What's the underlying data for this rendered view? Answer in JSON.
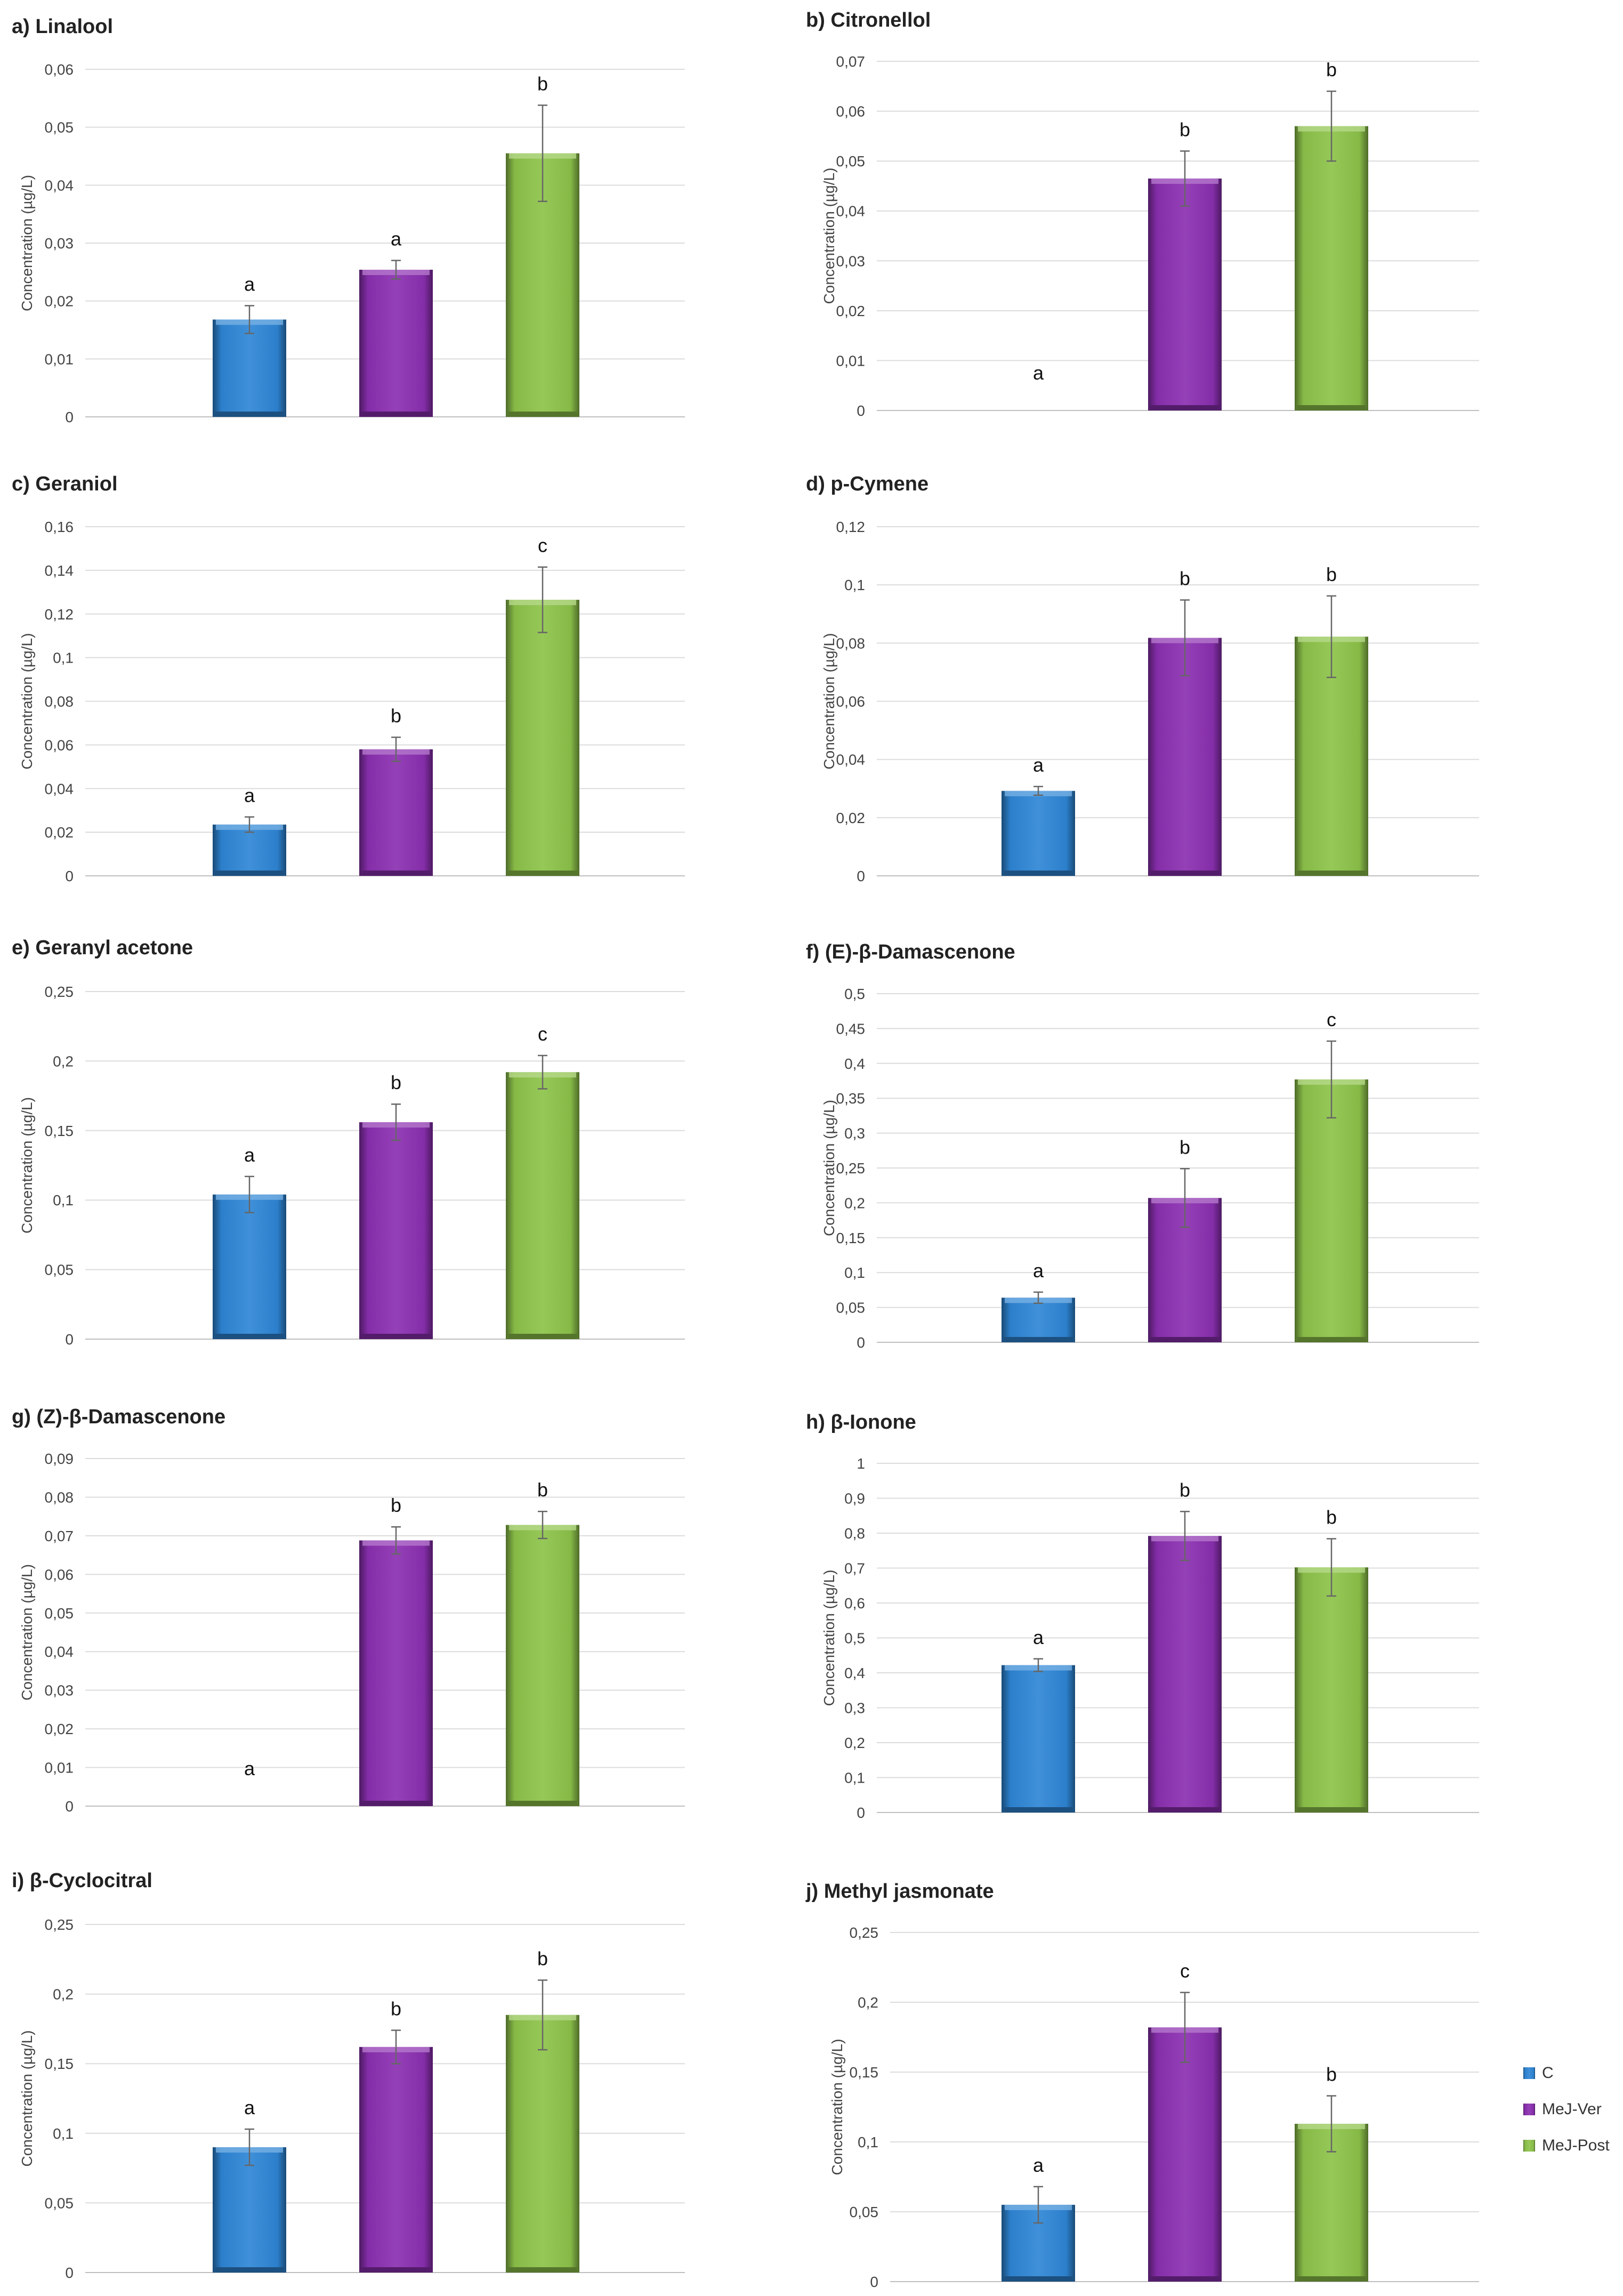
{
  "legend": [
    {
      "label": "C",
      "color": "#2E86D6"
    },
    {
      "label": "MeJ-Ver",
      "color": "#8B2FB1"
    },
    {
      "label": "MeJ-Post",
      "color": "#8DC34A"
    }
  ],
  "chart_data": [
    {
      "type": "bar",
      "title": "a) Linalool",
      "ylabel": "Concentration (µg/L)",
      "ylim": [
        0,
        0.06
      ],
      "ticks": [
        "0",
        "0,01",
        "0,02",
        "0,03",
        "0,04",
        "0,05",
        "0,06"
      ],
      "categories": [
        "C",
        "MeJ-Ver",
        "MeJ-Post"
      ],
      "values": [
        0.0168,
        0.0254,
        0.0455
      ],
      "errors": [
        0.0024,
        0.0016,
        0.0083
      ],
      "letters": [
        "a",
        "a",
        "b"
      ]
    },
    {
      "type": "bar",
      "title": "b) Citronellol",
      "ylabel": "Concentration (µg/L)",
      "ylim": [
        0,
        0.07
      ],
      "ticks": [
        "0",
        "0,01",
        "0,02",
        "0,03",
        "0,04",
        "0,05",
        "0,06",
        "0,07"
      ],
      "categories": [
        "C",
        "MeJ-Ver",
        "MeJ-Post"
      ],
      "values": [
        0,
        0.0465,
        0.057
      ],
      "errors": [
        0,
        0.0055,
        0.007
      ],
      "letters": [
        "a",
        "b",
        "b"
      ]
    },
    {
      "type": "bar",
      "title": "c) Geraniol",
      "ylabel": "Concentration (µg/L)",
      "ylim": [
        0,
        0.16
      ],
      "ticks": [
        "0",
        "0,02",
        "0,04",
        "0,06",
        "0,08",
        "0,1",
        "0,12",
        "0,14",
        "0,16"
      ],
      "categories": [
        "C",
        "MeJ-Ver",
        "MeJ-Post"
      ],
      "values": [
        0.0235,
        0.058,
        0.1265
      ],
      "errors": [
        0.0035,
        0.0055,
        0.015
      ],
      "letters": [
        "a",
        "b",
        "c"
      ]
    },
    {
      "type": "bar",
      "title": "d) p-Cymene",
      "ylabel": "Concentration (µg/L)",
      "ylim": [
        0,
        0.12
      ],
      "ticks": [
        "0",
        "0,02",
        "0,04",
        "0,06",
        "0,08",
        "0,1",
        "0,12"
      ],
      "categories": [
        "C",
        "MeJ-Ver",
        "MeJ-Post"
      ],
      "values": [
        0.0292,
        0.0818,
        0.0822
      ],
      "errors": [
        0.0015,
        0.013,
        0.014
      ],
      "letters": [
        "a",
        "b",
        "b"
      ]
    },
    {
      "type": "bar",
      "title": "e) Geranyl acetone",
      "ylabel": "Concentration (µg/L)",
      "ylim": [
        0,
        0.25
      ],
      "ticks": [
        "0",
        "0,05",
        "0,1",
        "0,15",
        "0,2",
        "0,25"
      ],
      "categories": [
        "C",
        "MeJ-Ver",
        "MeJ-Post"
      ],
      "values": [
        0.104,
        0.156,
        0.192
      ],
      "errors": [
        0.013,
        0.013,
        0.012
      ],
      "letters": [
        "a",
        "b",
        "c"
      ]
    },
    {
      "type": "bar",
      "title": "f) (E)-β-Damascenone",
      "ylabel": "Concentration (µg/L)",
      "ylim": [
        0,
        0.5
      ],
      "ticks": [
        "0",
        "0,05",
        "0,1",
        "0,15",
        "0,2",
        "0,25",
        "0,3",
        "0,35",
        "0,4",
        "0,45",
        "0,5"
      ],
      "categories": [
        "C",
        "MeJ-Ver",
        "MeJ-Post"
      ],
      "values": [
        0.064,
        0.207,
        0.377
      ],
      "errors": [
        0.008,
        0.042,
        0.055
      ],
      "letters": [
        "a",
        "b",
        "c"
      ]
    },
    {
      "type": "bar",
      "title": "g) (Z)-β-Damascenone",
      "ylabel": "Concentration (µg/L)",
      "ylim": [
        0,
        0.09
      ],
      "ticks": [
        "0",
        "0,01",
        "0,02",
        "0,03",
        "0,04",
        "0,05",
        "0,06",
        "0,07",
        "0,08",
        "0,09"
      ],
      "categories": [
        "C",
        "MeJ-Ver",
        "MeJ-Post"
      ],
      "values": [
        0,
        0.0688,
        0.0728
      ],
      "errors": [
        0,
        0.0035,
        0.0035
      ],
      "letters": [
        "a",
        "b",
        "b"
      ]
    },
    {
      "type": "bar",
      "title": "h) β-Ionone",
      "ylabel": "Concentration (µg/L)",
      "ylim": [
        0,
        1
      ],
      "ticks": [
        "0",
        "0,1",
        "0,2",
        "0,3",
        "0,4",
        "0,5",
        "0,6",
        "0,7",
        "0,8",
        "0,9",
        "1"
      ],
      "categories": [
        "C",
        "MeJ-Ver",
        "MeJ-Post"
      ],
      "values": [
        0.422,
        0.792,
        0.702
      ],
      "errors": [
        0.018,
        0.07,
        0.082
      ],
      "letters": [
        "a",
        "b",
        "b"
      ]
    },
    {
      "type": "bar",
      "title": "i) β-Cyclocitral",
      "ylabel": "Concentration (µg/L)",
      "ylim": [
        0,
        0.25
      ],
      "ticks": [
        "0",
        "0,05",
        "0,1",
        "0,15",
        "0,2",
        "0,25"
      ],
      "categories": [
        "C",
        "MeJ-Ver",
        "MeJ-Post"
      ],
      "values": [
        0.09,
        0.162,
        0.185
      ],
      "errors": [
        0.013,
        0.012,
        0.025
      ],
      "letters": [
        "a",
        "b",
        "b"
      ]
    },
    {
      "type": "bar",
      "title": "j) Methyl jasmonate",
      "ylabel": "Concentration (µg/L)",
      "ylim": [
        0,
        0.25
      ],
      "ticks": [
        "0",
        "0,05",
        "0,1",
        "0,15",
        "0,2",
        "0,25"
      ],
      "categories": [
        "C",
        "MeJ-Ver",
        "MeJ-Post"
      ],
      "values": [
        0.055,
        0.182,
        0.113
      ],
      "errors": [
        0.013,
        0.025,
        0.02
      ],
      "letters": [
        "a",
        "c",
        "b"
      ]
    }
  ]
}
